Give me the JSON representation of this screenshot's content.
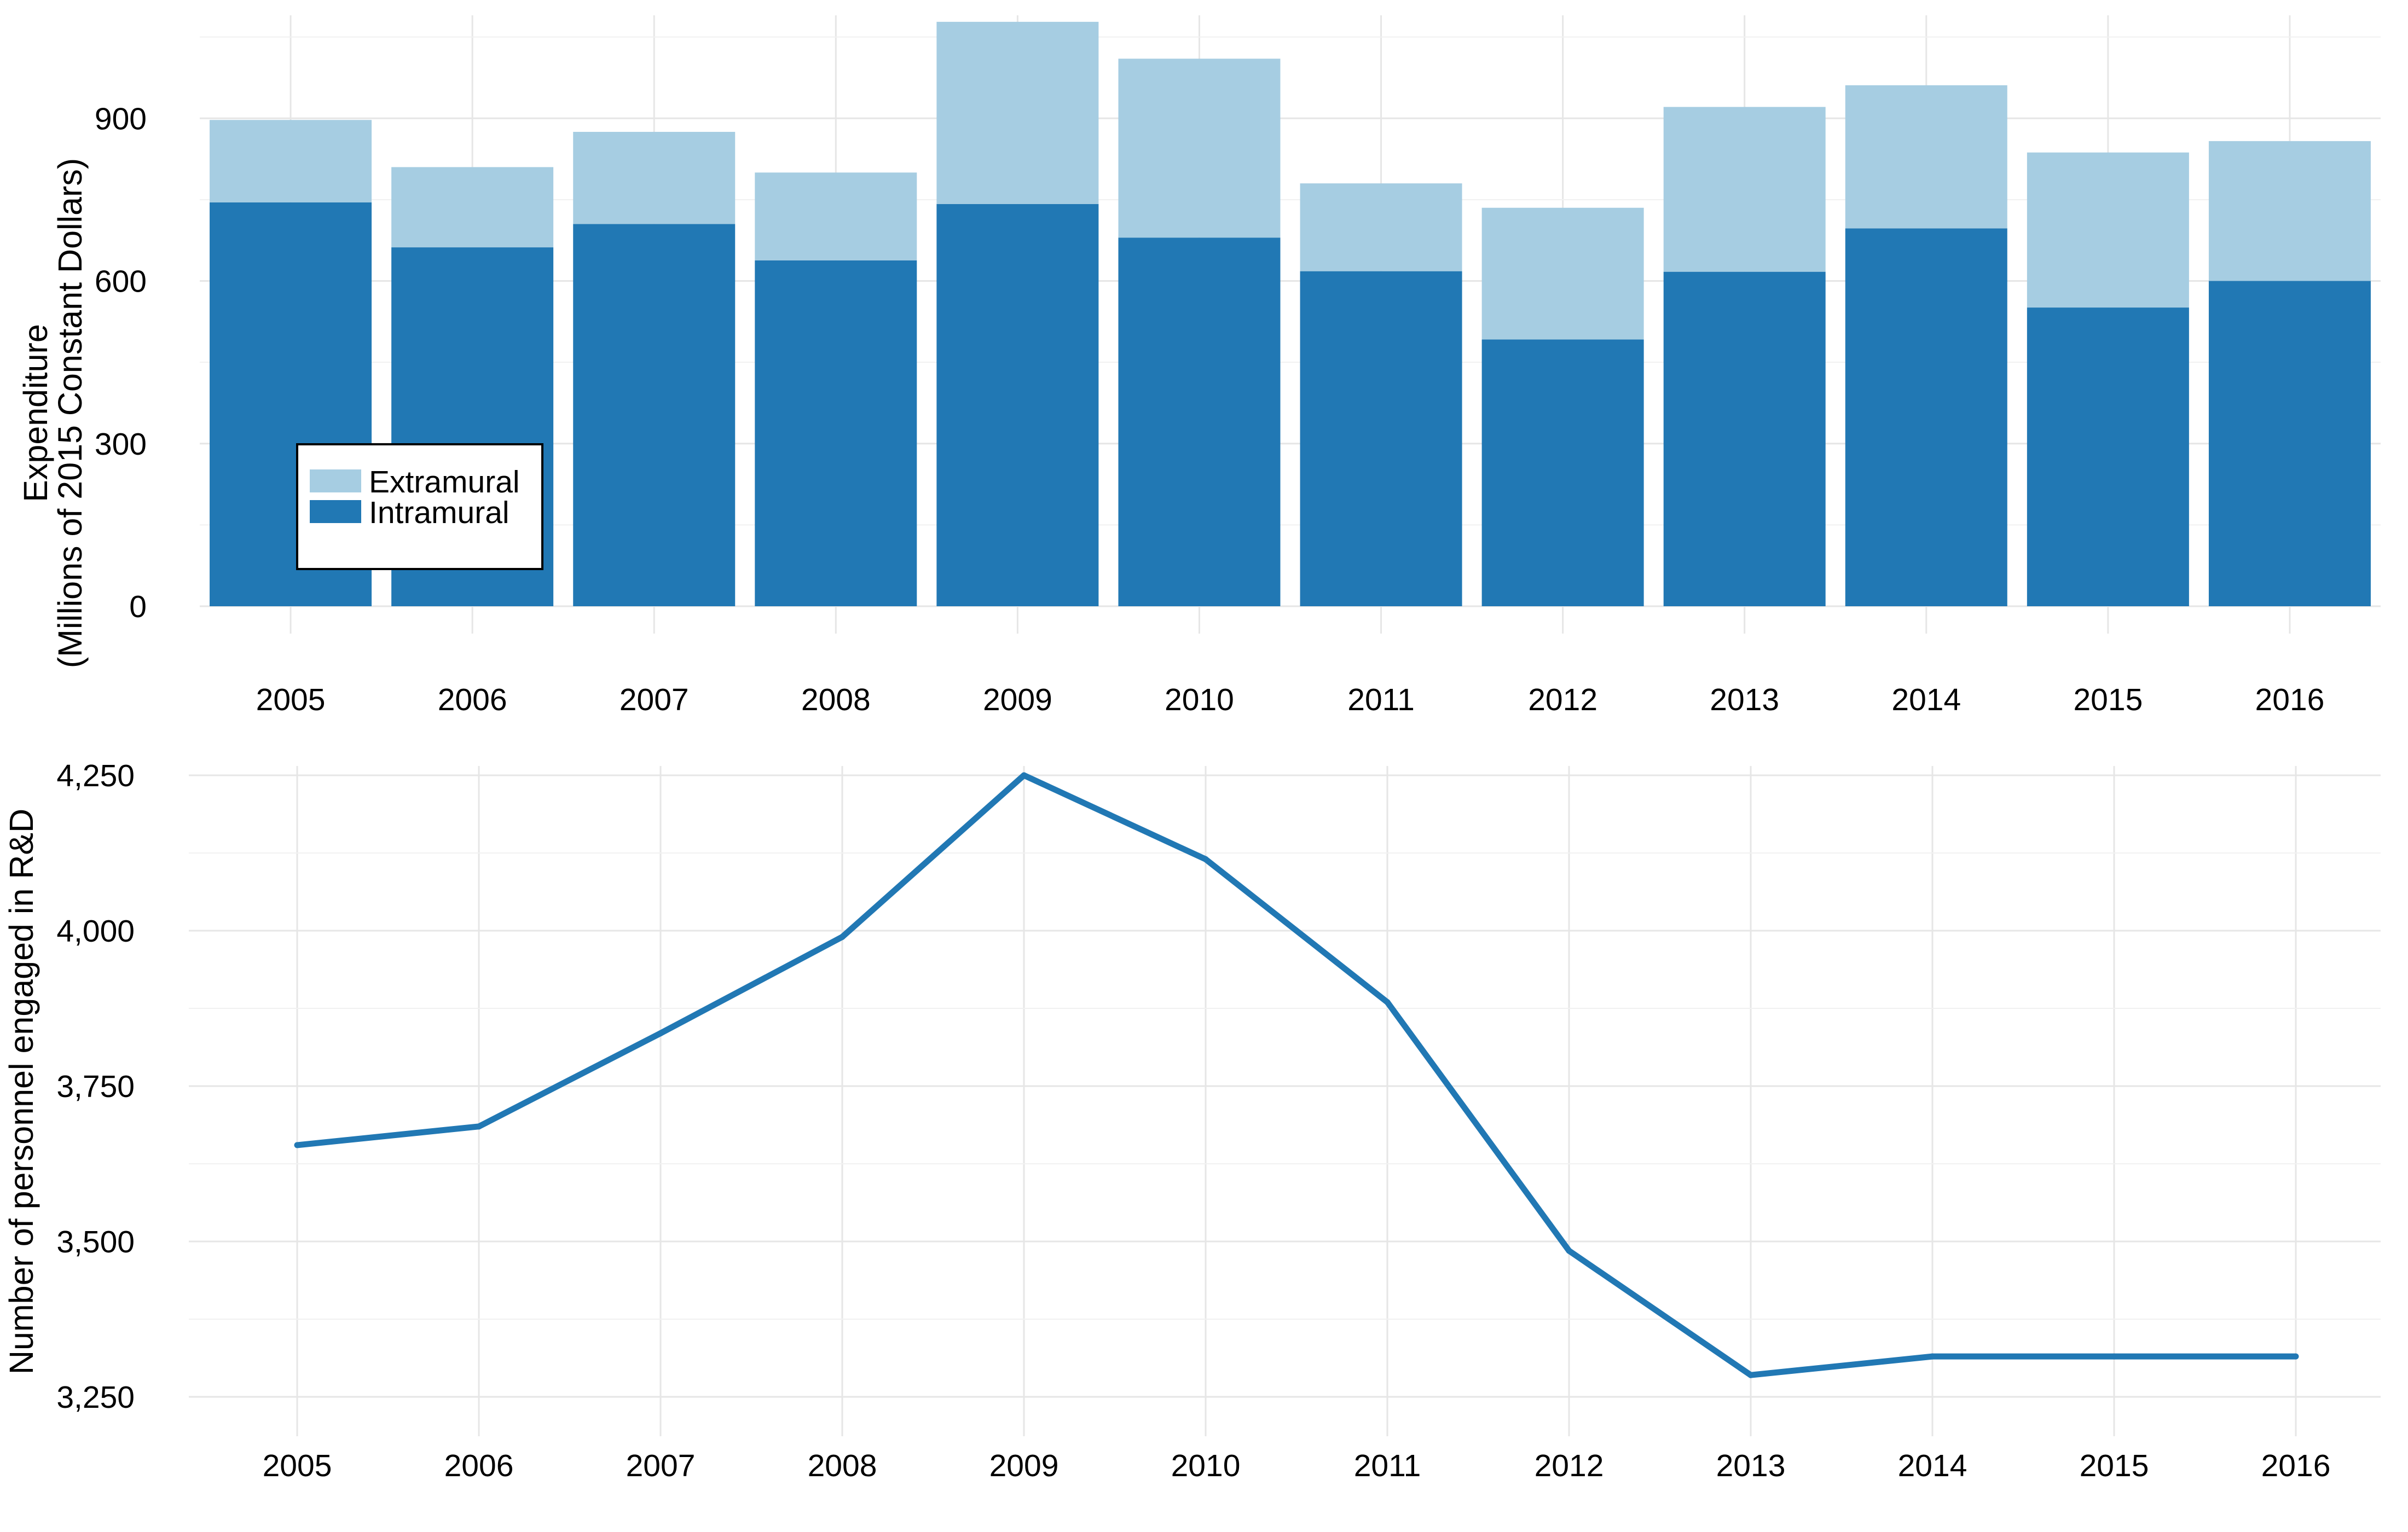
{
  "chart_data": [
    {
      "type": "bar",
      "stacked": true,
      "categories": [
        "2005",
        "2006",
        "2007",
        "2008",
        "2009",
        "2010",
        "2011",
        "2012",
        "2013",
        "2014",
        "2015",
        "2016"
      ],
      "series": [
        {
          "name": "Intramural",
          "color": "#2178b4",
          "values": [
            745,
            662,
            705,
            638,
            742,
            680,
            618,
            492,
            617,
            697,
            551,
            600
          ]
        },
        {
          "name": "Extramural",
          "color": "#a6cde2",
          "values": [
            152,
            148,
            170,
            162,
            336,
            330,
            162,
            243,
            304,
            264,
            286,
            258
          ]
        }
      ],
      "xlabel": "",
      "ylabel": "Expenditure\n(Millions of 2015 Constant Dollars)",
      "ylim": [
        0,
        1090
      ],
      "yticks": [
        0,
        300,
        600,
        900
      ],
      "ytick_labels": [
        "0",
        "300",
        "600",
        "900"
      ],
      "grid": true,
      "legend": {
        "placement": "bottom-left",
        "entries": [
          "Extramural",
          "Intramural"
        ]
      }
    },
    {
      "type": "line",
      "x": [
        "2005",
        "2006",
        "2007",
        "2008",
        "2009",
        "2010",
        "2011",
        "2012",
        "2013",
        "2014",
        "2015",
        "2016"
      ],
      "series": [
        {
          "color": "#2178b4",
          "values": [
            3655,
            3685,
            3835,
            3990,
            4250,
            4115,
            3885,
            3485,
            3285,
            3315,
            3315,
            3315
          ]
        }
      ],
      "xlabel": "",
      "ylabel": "Number of personnel engaged in R&D",
      "ylim": [
        3235,
        4265
      ],
      "yticks": [
        3250,
        3500,
        3750,
        4000,
        4250
      ],
      "ytick_labels": [
        "3,250",
        "3,500",
        "3,750",
        "4,000",
        "4,250"
      ],
      "grid": true
    }
  ]
}
